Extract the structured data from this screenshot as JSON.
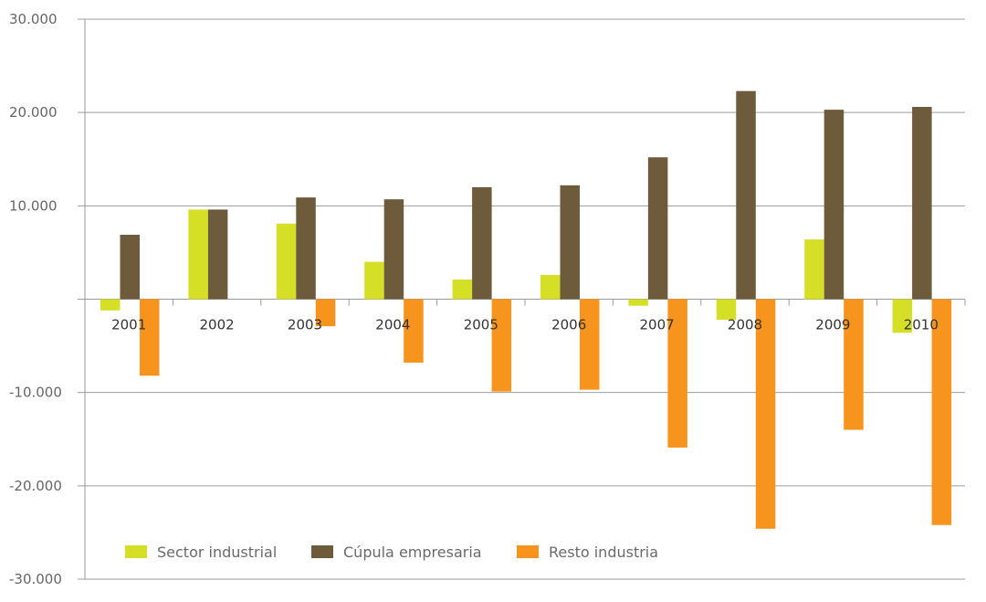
{
  "chart_data": {
    "type": "bar",
    "title": "",
    "xlabel": "",
    "ylabel": "",
    "categories": [
      "2001",
      "2002",
      "2003",
      "2004",
      "2005",
      "2006",
      "2007",
      "2008",
      "2009",
      "2010"
    ],
    "ylim": [
      -30000,
      30000
    ],
    "yticks": [
      30000,
      20000,
      10000,
      0,
      -10000,
      -20000,
      -30000
    ],
    "ytick_labels": [
      "30.000",
      "20.000",
      "10.000",
      "",
      "-10.000",
      "-20.000",
      "-30.000"
    ],
    "grid": true,
    "legend_position": "bottom-left",
    "series": [
      {
        "name": "Sector industrial",
        "color": "#d4df25",
        "values": [
          -1200,
          9600,
          8100,
          4000,
          2100,
          2600,
          -700,
          -2200,
          6400,
          -3600
        ]
      },
      {
        "name": "Cúpula empresaria",
        "color": "#6e5b3b",
        "values": [
          6900,
          9600,
          10900,
          10700,
          12000,
          12200,
          15200,
          22300,
          20300,
          20600
        ]
      },
      {
        "name": "Resto industria",
        "color": "#f7941d",
        "values": [
          -8200,
          0,
          -2900,
          -6800,
          -9900,
          -9700,
          -15900,
          -24600,
          -14000,
          -24200
        ]
      }
    ]
  }
}
